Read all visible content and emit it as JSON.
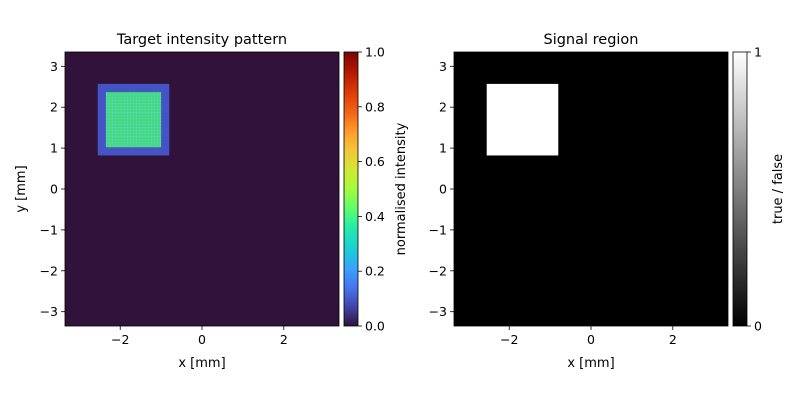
{
  "chart_data": [
    {
      "type": "heatmap",
      "title": "Target intensity pattern",
      "xlabel": "x [mm]",
      "ylabel": "y [mm]",
      "xlim": [
        -3.35,
        3.35
      ],
      "ylim": [
        -3.35,
        3.35
      ],
      "xticks": [
        -2,
        0,
        2
      ],
      "yticks": [
        -3,
        -2,
        -1,
        0,
        1,
        2,
        3
      ],
      "xtick_labels": [
        "−2",
        "0",
        "2"
      ],
      "ytick_labels": [
        "−3",
        "−2",
        "−1",
        "0",
        "1",
        "2",
        "3"
      ],
      "background_value": 0.0,
      "regions": [
        {
          "x": [
            -2.55,
            -0.8
          ],
          "y": [
            0.82,
            2.57
          ],
          "value": 0.1
        },
        {
          "x": [
            -2.35,
            -1.0
          ],
          "y": [
            1.02,
            2.37
          ],
          "value": 0.33,
          "texture": "fine grid"
        }
      ],
      "colorbar": {
        "label": "normalised intensity",
        "colormap": "turbo",
        "range": [
          0.0,
          1.0
        ],
        "ticks": [
          0.0,
          0.2,
          0.4,
          0.6,
          0.8,
          1.0
        ],
        "tick_labels": [
          "0.0",
          "0.2",
          "0.4",
          "0.6",
          "0.8",
          "1.0"
        ]
      },
      "colors": {
        "background": "#30123b",
        "signal_border": "#4454c4",
        "signal_core": "#3ddc84"
      }
    },
    {
      "type": "heatmap",
      "title": "Signal region",
      "xlabel": "x [mm]",
      "ylabel": "",
      "xlim": [
        -3.35,
        3.35
      ],
      "ylim": [
        -3.35,
        3.35
      ],
      "xticks": [
        -2,
        0,
        2
      ],
      "yticks": [
        -3,
        -2,
        -1,
        0,
        1,
        2,
        3
      ],
      "xtick_labels": [
        "−2",
        "0",
        "2"
      ],
      "ytick_labels": [
        "−3",
        "−2",
        "−1",
        "0",
        "1",
        "2",
        "3"
      ],
      "background_value": 0,
      "regions": [
        {
          "x": [
            -2.55,
            -0.8
          ],
          "y": [
            0.82,
            2.57
          ],
          "value": 1
        }
      ],
      "colorbar": {
        "label": "true / false",
        "colormap": "gray",
        "range": [
          0,
          1
        ],
        "ticks": [
          0,
          1
        ],
        "tick_labels": [
          "0",
          "1"
        ]
      },
      "colors": {
        "background": "#000000",
        "signal": "#ffffff"
      }
    }
  ]
}
